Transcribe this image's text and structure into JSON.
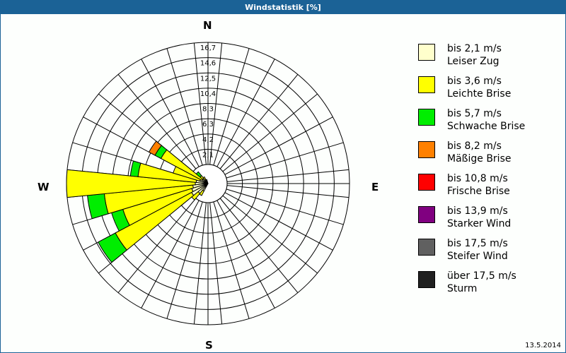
{
  "window": {
    "title": "Windstatistik [%]"
  },
  "compass": {
    "n": "N",
    "e": "E",
    "s": "S",
    "w": "W"
  },
  "footer": {
    "date": "13.5.2014"
  },
  "legend": [
    {
      "color": "#ffffcc",
      "line1": "bis 2,1 m/s",
      "line2": "Leiser Zug"
    },
    {
      "color": "#ffff00",
      "line1": "bis 3,6 m/s",
      "line2": "Leichte Brise"
    },
    {
      "color": "#00ee00",
      "line1": "bis 5,7 m/s",
      "line2": "Schwache Brise"
    },
    {
      "color": "#ff8000",
      "line1": "bis 8,2 m/s",
      "line2": "Mäßige Brise"
    },
    {
      "color": "#ff0000",
      "line1": "bis 10,8 m/s",
      "line2": "Frische Brise"
    },
    {
      "color": "#800080",
      "line1": "bis 13,9 m/s",
      "line2": "Starker Wind"
    },
    {
      "color": "#606060",
      "line1": "bis 17,5 m/s",
      "line2": "Steifer Wind"
    },
    {
      "color": "#202020",
      "line1": "über 17,5 m/s",
      "line2": "Sturm"
    }
  ],
  "chart_data": {
    "type": "wind-rose",
    "title": "Windstatistik [%]",
    "unit": "%",
    "sectors": 32,
    "ring_labels": [
      "2,1",
      "4,2",
      "6,3",
      "8,3",
      "10,4",
      "12,5",
      "14,6",
      "16,7"
    ],
    "rmax": 16.7,
    "directions_labels": [
      "N",
      "E",
      "S",
      "W"
    ],
    "series_names": [
      "bis 2,1 m/s",
      "bis 3,6 m/s",
      "bis 5,7 m/s",
      "bis 8,2 m/s",
      "bis 10,8 m/s",
      "bis 13,9 m/s",
      "bis 17,5 m/s",
      "über 17,5 m/s"
    ],
    "petals": [
      {
        "bearing": 213.75,
        "cumulative": [
          1.0,
          1.6
        ]
      },
      {
        "bearing": 225.0,
        "cumulative": [
          1.5,
          2.5
        ]
      },
      {
        "bearing": 236.25,
        "cumulative": [
          2.2,
          12.4,
          14.7
        ]
      },
      {
        "bearing": 247.5,
        "cumulative": [
          2.0,
          10.5,
          11.9
        ]
      },
      {
        "bearing": 258.75,
        "cumulative": [
          1.8,
          12.3,
          14.3
        ]
      },
      {
        "bearing": 270.0,
        "cumulative": [
          1.5,
          16.7
        ]
      },
      {
        "bearing": 281.25,
        "cumulative": [
          1.4,
          8.3,
          9.2
        ]
      },
      {
        "bearing": 292.5,
        "cumulative": [
          1.0,
          4.3
        ]
      },
      {
        "bearing": 303.75,
        "cumulative": [
          0.8,
          6.3,
          7.1,
          7.9
        ]
      },
      {
        "bearing": 315.0,
        "cumulative": [
          0.8,
          1.2,
          1.8
        ]
      },
      {
        "bearing": 326.25,
        "cumulative": [
          0.5,
          0.9
        ]
      },
      {
        "bearing": 337.5,
        "cumulative": [
          0.3,
          0.5
        ]
      }
    ]
  }
}
